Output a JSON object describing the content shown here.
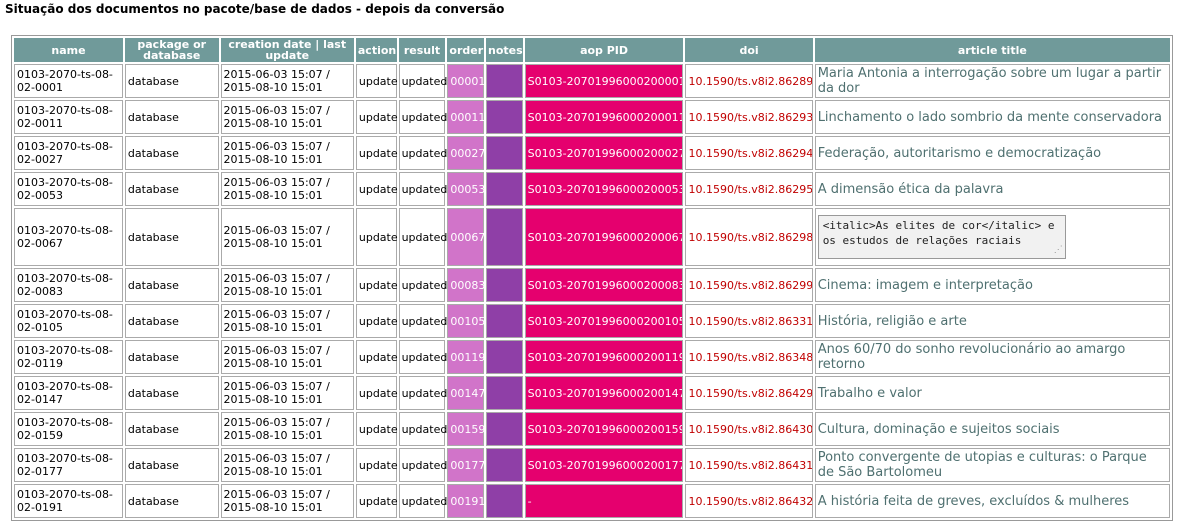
{
  "page": {
    "title": "Situação dos documentos no pacote/base de dados - depois da conversão"
  },
  "table": {
    "headers": {
      "name": "name",
      "package": "package or database",
      "date": "creation date | last update",
      "action": "action",
      "result": "result",
      "order": "order",
      "notes": "notes",
      "aop": "aop PID",
      "doi": "doi",
      "title": "article title"
    },
    "rows": [
      {
        "name": "0103-2070-ts-08-02-0001",
        "package": "database",
        "created": "2015-06-03 15:07 /",
        "updated": "2015-08-10 15:01",
        "action": "update",
        "result": "updated",
        "order": "00001",
        "aop": "S0103-20701996000200001",
        "doi": "10.1590/ts.v8i2.86289",
        "title": "Maria Antonia a interrogação sobre um lugar a partir da dor"
      },
      {
        "name": "0103-2070-ts-08-02-0011",
        "package": "database",
        "created": "2015-06-03 15:07 /",
        "updated": "2015-08-10 15:01",
        "action": "update",
        "result": "updated",
        "order": "00011",
        "aop": "S0103-20701996000200011",
        "doi": "10.1590/ts.v8i2.86293",
        "title": "Linchamento o lado sombrio da mente conservadora"
      },
      {
        "name": "0103-2070-ts-08-02-0027",
        "package": "database",
        "created": "2015-06-03 15:07 /",
        "updated": "2015-08-10 15:01",
        "action": "update",
        "result": "updated",
        "order": "00027",
        "aop": "S0103-20701996000200027",
        "doi": "10.1590/ts.v8i2.86294",
        "title": "Federação, autoritarismo e democratização"
      },
      {
        "name": "0103-2070-ts-08-02-0053",
        "package": "database",
        "created": "2015-06-03 15:07 /",
        "updated": "2015-08-10 15:01",
        "action": "update",
        "result": "updated",
        "order": "00053",
        "aop": "S0103-20701996000200053",
        "doi": "10.1590/ts.v8i2.86295",
        "title": "A dimensão ética da palavra"
      },
      {
        "name": "0103-2070-ts-08-02-0067",
        "package": "database",
        "created": "2015-06-03 15:07 /",
        "updated": "2015-08-10 15:01",
        "action": "update",
        "result": "updated",
        "order": "00067",
        "aop": "S0103-20701996000200067",
        "doi": "10.1590/ts.v8i2.86298",
        "title": "<italic>As elites de cor</italic> e os estudos de relações raciais"
      },
      {
        "name": "0103-2070-ts-08-02-0083",
        "package": "database",
        "created": "2015-06-03 15:07 /",
        "updated": "2015-08-10 15:01",
        "action": "update",
        "result": "updated",
        "order": "00083",
        "aop": "S0103-20701996000200083",
        "doi": "10.1590/ts.v8i2.86299",
        "title": "Cinema: imagem e interpretação"
      },
      {
        "name": "0103-2070-ts-08-02-0105",
        "package": "database",
        "created": "2015-06-03 15:07 /",
        "updated": "2015-08-10 15:01",
        "action": "update",
        "result": "updated",
        "order": "00105",
        "aop": "S0103-20701996000200105",
        "doi": "10.1590/ts.v8i2.86331",
        "title": "História, religião e arte"
      },
      {
        "name": "0103-2070-ts-08-02-0119",
        "package": "database",
        "created": "2015-06-03 15:07 /",
        "updated": "2015-08-10 15:01",
        "action": "update",
        "result": "updated",
        "order": "00119",
        "aop": "S0103-20701996000200119",
        "doi": "10.1590/ts.v8i2.86348",
        "title": "Anos 60/70 do sonho revolucionário ao amargo retorno"
      },
      {
        "name": "0103-2070-ts-08-02-0147",
        "package": "database",
        "created": "2015-06-03 15:07 /",
        "updated": "2015-08-10 15:01",
        "action": "update",
        "result": "updated",
        "order": "00147",
        "aop": "S0103-20701996000200147",
        "doi": "10.1590/ts.v8i2.86429",
        "title": "Trabalho e valor"
      },
      {
        "name": "0103-2070-ts-08-02-0159",
        "package": "database",
        "created": "2015-06-03 15:07 /",
        "updated": "2015-08-10 15:01",
        "action": "update",
        "result": "updated",
        "order": "00159",
        "aop": "S0103-20701996000200159",
        "doi": "10.1590/ts.v8i2.86430",
        "title": "Cultura, dominação e sujeitos sociais"
      },
      {
        "name": "0103-2070-ts-08-02-0177",
        "package": "database",
        "created": "2015-06-03 15:07 /",
        "updated": "2015-08-10 15:01",
        "action": "update",
        "result": "updated",
        "order": "00177",
        "aop": "S0103-20701996000200177",
        "doi": "10.1590/ts.v8i2.86431",
        "title": "Ponto convergente de utopias e culturas: o Parque de São Bartolomeu"
      },
      {
        "name": "0103-2070-ts-08-02-0191",
        "package": "database",
        "created": "2015-06-03 15:07 /",
        "updated": "2015-08-10 15:01",
        "action": "update",
        "result": "updated",
        "order": "00191",
        "aop": "-",
        "doi": "10.1590/ts.v8i2.86432",
        "title": "A história feita de greves, excluídos & mulheres"
      }
    ]
  },
  "colors": {
    "header_bg": "#709a9a",
    "order_bg": "#d174c9",
    "notes_bg": "#8f3fa7",
    "aop_bg": "#e5006e",
    "doi_text": "#c00000",
    "title_text": "#4f7070"
  }
}
